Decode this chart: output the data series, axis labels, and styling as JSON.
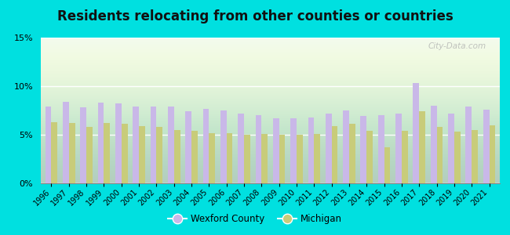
{
  "title": "Residents relocating from other counties or countries",
  "years": [
    1996,
    1997,
    1998,
    1999,
    2000,
    2001,
    2002,
    2003,
    2004,
    2005,
    2006,
    2007,
    2008,
    2009,
    2010,
    2011,
    2012,
    2013,
    2014,
    2015,
    2016,
    2017,
    2018,
    2019,
    2020,
    2021
  ],
  "wexford": [
    7.9,
    8.4,
    7.8,
    8.3,
    8.2,
    7.9,
    7.9,
    7.9,
    7.4,
    7.7,
    7.5,
    7.2,
    7.0,
    6.7,
    6.7,
    6.8,
    7.2,
    7.5,
    6.9,
    7.0,
    7.2,
    10.3,
    8.0,
    7.2,
    7.9,
    7.6
  ],
  "michigan": [
    6.3,
    6.2,
    5.8,
    6.2,
    6.1,
    5.9,
    5.8,
    5.5,
    5.4,
    5.2,
    5.2,
    5.0,
    5.1,
    5.0,
    5.0,
    5.1,
    5.9,
    6.1,
    5.4,
    3.7,
    5.4,
    7.4,
    5.8,
    5.3,
    5.5,
    6.0
  ],
  "wexford_color": "#c9b8e8",
  "michigan_color": "#c8cc7a",
  "bg_color": "#00e0e0",
  "title_fontsize": 12,
  "ylim": [
    0,
    15
  ],
  "yticks": [
    0,
    5,
    10,
    15
  ],
  "ytick_labels": [
    "0%",
    "5%",
    "10%",
    "15%"
  ],
  "watermark": "City-Data.com",
  "legend_wexford": "Wexford County",
  "legend_michigan": "Michigan"
}
